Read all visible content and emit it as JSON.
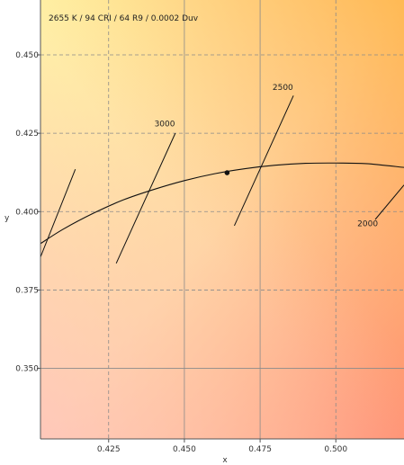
{
  "chart_data": {
    "type": "line",
    "annotation": "2655 K / 94 CRI / 64 R9 / 0.0002 Duv",
    "xlabel": "x",
    "ylabel": "y",
    "xlim": [
      0.4025,
      0.5225
    ],
    "ylim": [
      0.3275,
      0.4675
    ],
    "x_ticks": [
      {
        "value": 0.425,
        "label": "0.425"
      },
      {
        "value": 0.45,
        "label": "0.450"
      },
      {
        "value": 0.475,
        "label": "0.475"
      },
      {
        "value": 0.5,
        "label": "0.500"
      }
    ],
    "y_ticks": [
      {
        "value": 0.35,
        "label": "0.350"
      },
      {
        "value": 0.375,
        "label": "0.375"
      },
      {
        "value": 0.4,
        "label": "0.400"
      },
      {
        "value": 0.425,
        "label": "0.425"
      },
      {
        "value": 0.45,
        "label": "0.450"
      }
    ],
    "grid": true,
    "gridline_dashed_x": [
      0.425,
      0.5
    ],
    "gridline_dashed_y": [
      0.45,
      0.425,
      0.4,
      0.375
    ],
    "series": [
      {
        "x": [
          0.4025,
          0.41,
          0.42,
          0.43,
          0.44,
          0.45,
          0.46,
          0.47,
          0.48,
          0.49,
          0.5,
          0.51,
          0.5225
        ],
        "y": [
          0.3898,
          0.3944,
          0.3995,
          0.4038,
          0.4071,
          0.4099,
          0.4121,
          0.4137,
          0.4148,
          0.4154,
          0.4155,
          0.4153,
          0.4141
        ]
      }
    ],
    "isotherms": [
      {
        "label": "3000",
        "x1": 0.4275,
        "y1": 0.3835,
        "x2": 0.447,
        "y2": 0.425,
        "label_x": 0.4435,
        "label_y": 0.4272
      },
      {
        "label": "2500",
        "x1": 0.4665,
        "y1": 0.3955,
        "x2": 0.486,
        "y2": 0.437,
        "label_x": 0.4825,
        "label_y": 0.4388
      },
      {
        "label": "2000",
        "x1": 0.513,
        "y1": 0.3975,
        "x2": 0.5225,
        "y2": 0.4085,
        "label_x": 0.5105,
        "label_y": 0.3954
      },
      {
        "label": "",
        "x1": 0.4025,
        "y1": 0.3855,
        "x2": 0.414,
        "y2": 0.4135
      }
    ],
    "points": [
      {
        "x": 0.4641,
        "y": 0.4124
      }
    ]
  }
}
